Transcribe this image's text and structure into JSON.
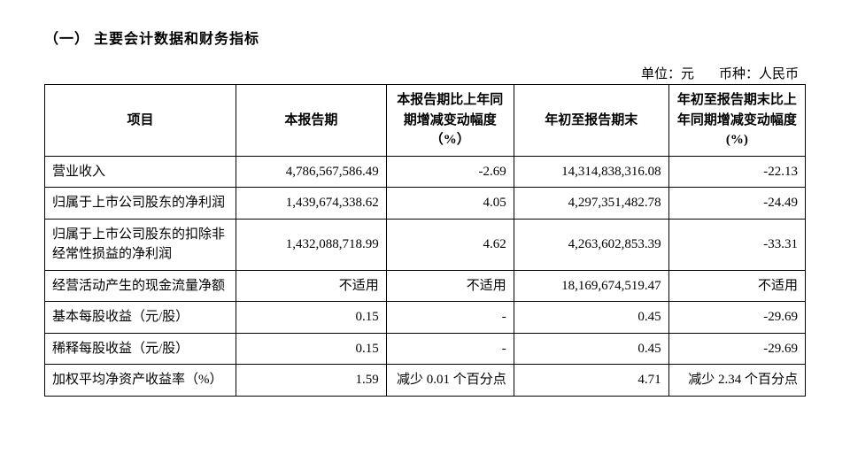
{
  "section_title": "（一） 主要会计数据和财务指标",
  "unit_label": "单位：",
  "unit_value": "元",
  "currency_label": "币种：",
  "currency_value": "人民币",
  "table": {
    "headers": {
      "item": "项目",
      "current_period": "本报告期",
      "change_yoy": "本报告期比上年同期增减变动幅度（%）",
      "ytd": "年初至报告期末",
      "change_ytd_yoy": "年初至报告期末比上年同期增减变动幅度(%)"
    },
    "rows": [
      {
        "item": "营业收入",
        "current_period": "4,786,567,586.49",
        "change_yoy": "-2.69",
        "ytd": "14,314,838,316.08",
        "change_ytd_yoy": "-22.13"
      },
      {
        "item": "归属于上市公司股东的净利润",
        "current_period": "1,439,674,338.62",
        "change_yoy": "4.05",
        "ytd": "4,297,351,482.78",
        "change_ytd_yoy": "-24.49"
      },
      {
        "item": "归属于上市公司股东的扣除非经常性损益的净利润",
        "current_period": "1,432,088,718.99",
        "change_yoy": "4.62",
        "ytd": "4,263,602,853.39",
        "change_ytd_yoy": "-33.31"
      },
      {
        "item": "经营活动产生的现金流量净额",
        "current_period": "不适用",
        "change_yoy": "不适用",
        "ytd": "18,169,674,519.47",
        "change_ytd_yoy": "不适用"
      },
      {
        "item": "基本每股收益（元/股）",
        "current_period": "0.15",
        "change_yoy": "-",
        "ytd": "0.45",
        "change_ytd_yoy": "-29.69"
      },
      {
        "item": "稀释每股收益（元/股）",
        "current_period": "0.15",
        "change_yoy": "-",
        "ytd": "0.45",
        "change_ytd_yoy": "-29.69"
      },
      {
        "item": "加权平均净资产收益率（%）",
        "current_period": "1.59",
        "change_yoy": "减少 0.01 个百分点",
        "ytd": "4.71",
        "change_ytd_yoy": "减少 2.34 个百分点"
      }
    ]
  }
}
